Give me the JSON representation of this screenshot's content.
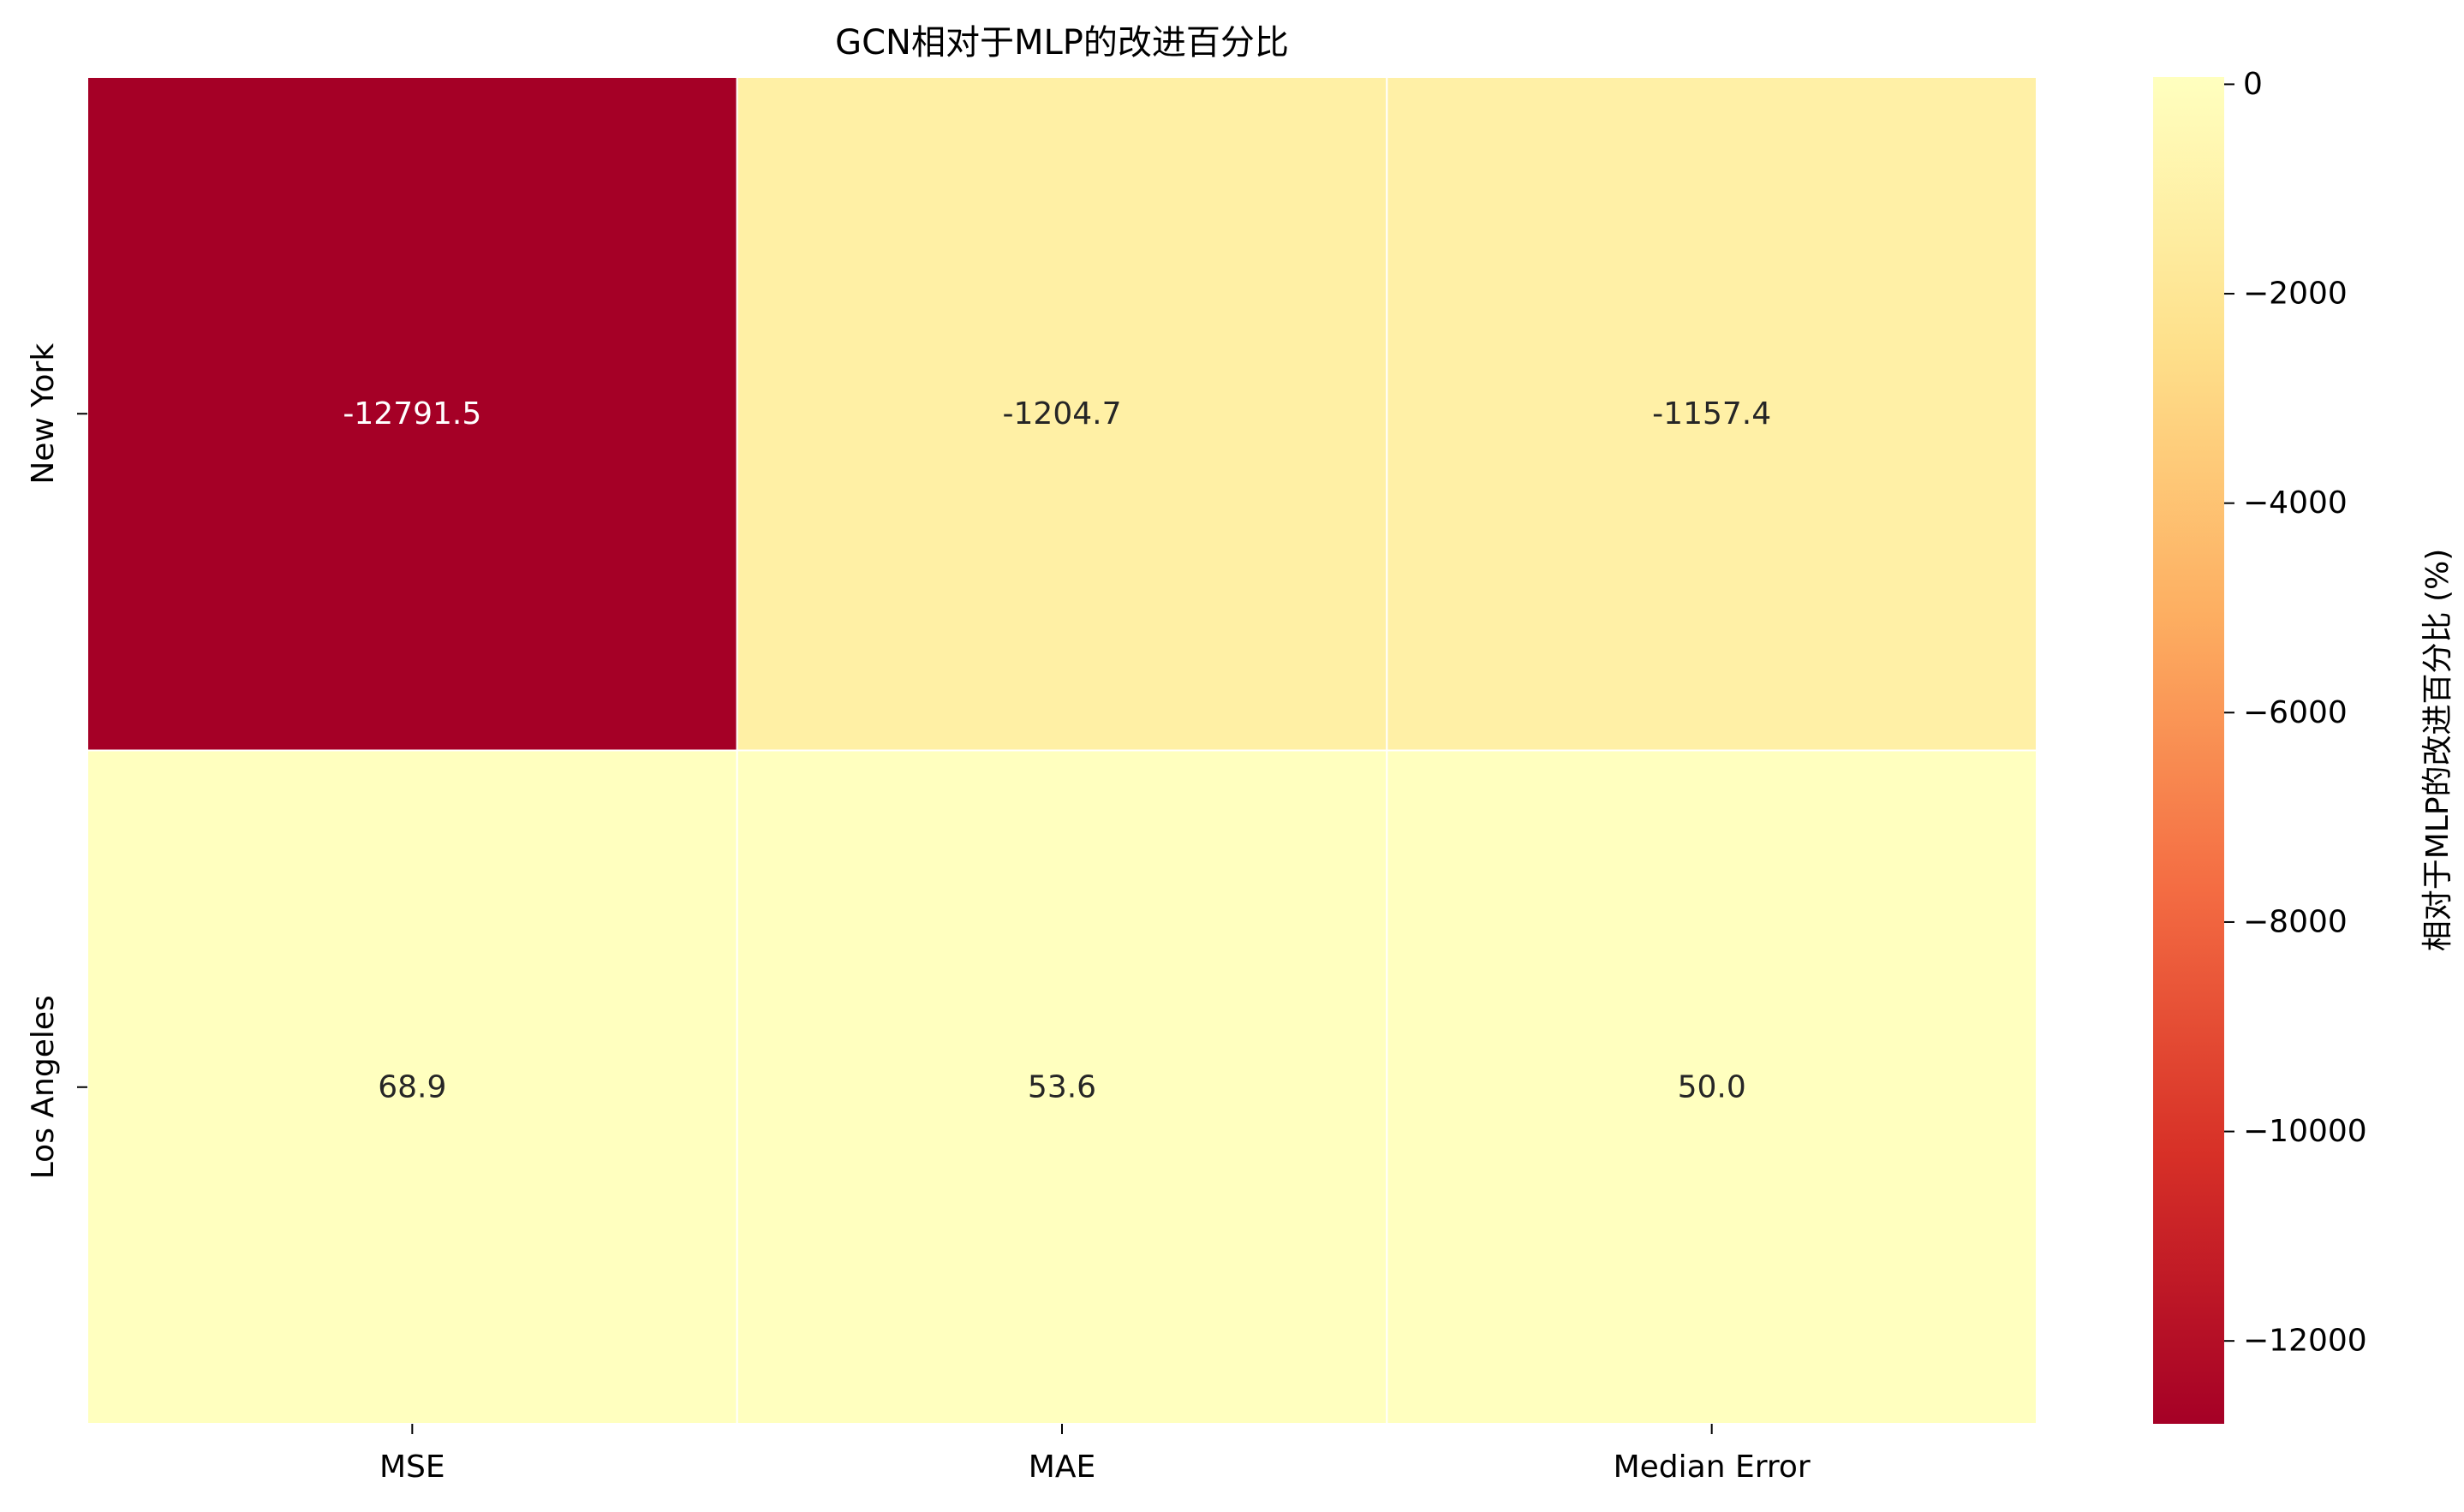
{
  "chart_data": {
    "type": "heatmap",
    "title": "GCN相对于MLP的改进百分比",
    "rows": [
      "New York",
      "Los Angeles"
    ],
    "columns": [
      "MSE",
      "MAE",
      "Median Error"
    ],
    "values": [
      [
        -12791.5,
        -1204.7,
        -1157.4
      ],
      [
        68.9,
        53.6,
        50.0
      ]
    ],
    "value_labels": [
      [
        "-12791.5",
        "-1204.7",
        "-1157.4"
      ],
      [
        "68.9",
        "53.6",
        "50.0"
      ]
    ],
    "colorbar": {
      "label": "相对于MLP的改进百分比 (%)",
      "vmin": -12791.5,
      "vmax": 68.9,
      "ticks": [
        0,
        -2000,
        -4000,
        -6000,
        -8000,
        -10000,
        -12000
      ],
      "tick_labels": [
        "0",
        "−2000",
        "−4000",
        "−6000",
        "−8000",
        "−10000",
        "−12000"
      ]
    },
    "colormap": "RdYlGn-like (red → yellow)",
    "colormap_stops": [
      "#a50026",
      "#d73027",
      "#f46d43",
      "#fdae61",
      "#fee08b",
      "#ffffbf"
    ]
  }
}
